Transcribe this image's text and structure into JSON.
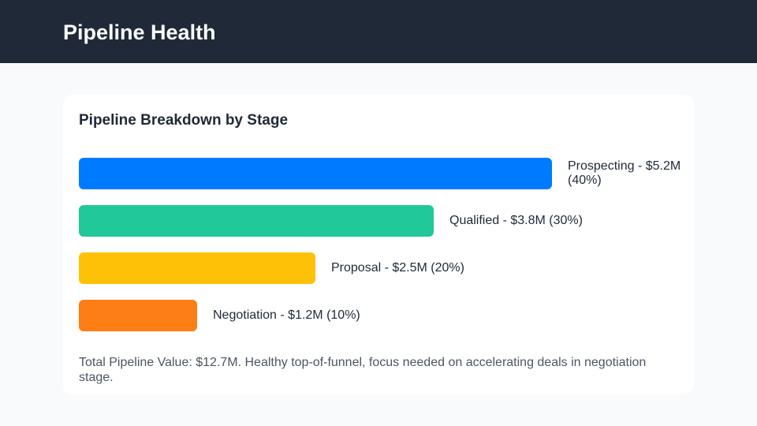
{
  "header": {
    "title": "Pipeline Health"
  },
  "chart_data": {
    "type": "bar",
    "orientation": "horizontal",
    "title": "Pipeline Breakdown by Stage",
    "categories": [
      "Prospecting",
      "Qualified",
      "Proposal",
      "Negotiation"
    ],
    "values": [
      5.2,
      3.8,
      2.5,
      1.2
    ],
    "percents": [
      40,
      30,
      20,
      10
    ],
    "unit": "$M",
    "labels": [
      "Prospecting - $5.2M (40%)",
      "Qualified - $3.8M (30%)",
      "Proposal - $2.5M (20%)",
      "Negotiation - $1.2M (10%)"
    ],
    "colors": [
      "#007bff",
      "#20c997",
      "#ffc107",
      "#fd7e14"
    ],
    "grid": false
  },
  "note": "Total Pipeline Value: $12.7M. Healthy top-of-funnel, focus needed on accelerating deals in negotiation stage."
}
